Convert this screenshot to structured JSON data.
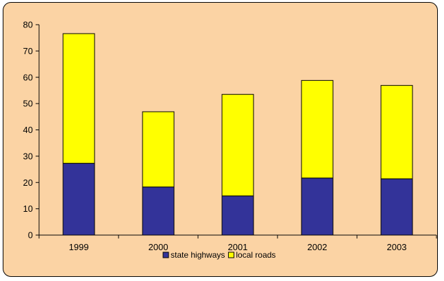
{
  "chart_data": {
    "type": "bar",
    "stacked": true,
    "categories": [
      "1999",
      "2000",
      "2001",
      "2002",
      "2003"
    ],
    "series": [
      {
        "name": "state highways",
        "values": [
          27.3,
          18.3,
          14.9,
          21.7,
          21.4
        ],
        "color": "#333399"
      },
      {
        "name": "local roads",
        "values": [
          49.3,
          28.6,
          38.6,
          37.1,
          35.5
        ],
        "color": "#ffff00"
      }
    ],
    "title": "",
    "xlabel": "",
    "ylabel": "",
    "ylim": [
      0,
      80
    ],
    "yticks": [
      0,
      10,
      20,
      30,
      40,
      50,
      60,
      70,
      80
    ],
    "grid": false,
    "legend_position": "bottom",
    "background_color": "#fbd3a4"
  }
}
